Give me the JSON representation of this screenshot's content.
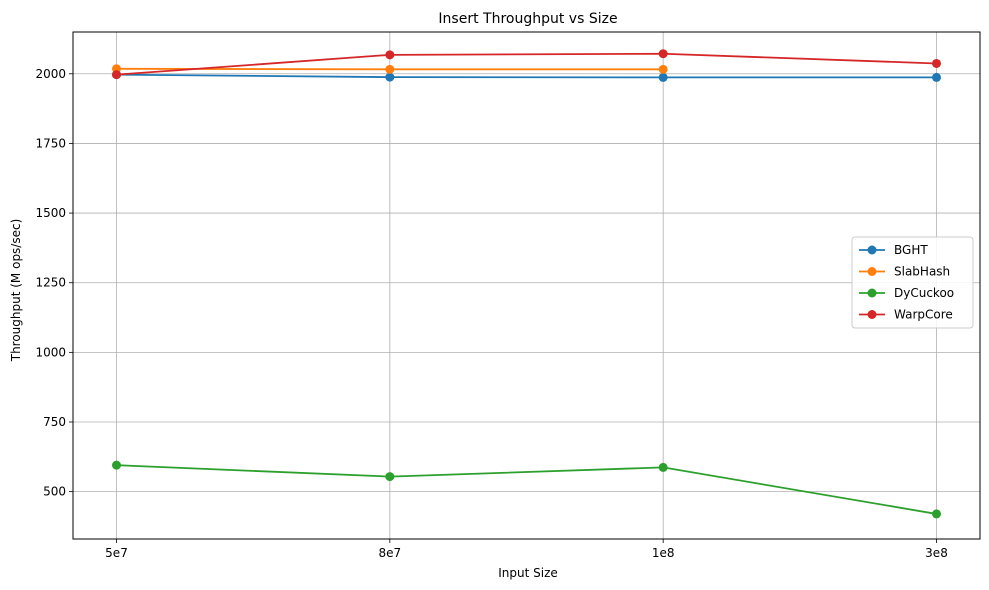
{
  "chart_data": {
    "type": "line",
    "title": "Insert Throughput vs Size",
    "xlabel": "Input Size",
    "ylabel": "Throughput (M ops/sec)",
    "categories": [
      "5e7",
      "8e7",
      "1e8",
      "3e8"
    ],
    "ylim": [
      330,
      2150
    ],
    "yticks": [
      500,
      750,
      1000,
      1250,
      1500,
      1750,
      2000
    ],
    "grid": true,
    "legend_position": "center-right",
    "series": [
      {
        "name": "BGHT",
        "color": "#1f77b4",
        "values": [
          1997,
          1988,
          1987,
          1987
        ]
      },
      {
        "name": "SlabHash",
        "color": "#ff7f0e",
        "values": [
          2018,
          2016,
          2016,
          null
        ]
      },
      {
        "name": "DyCuckoo",
        "color": "#2ca02c",
        "values": [
          595,
          554,
          587,
          420
        ]
      },
      {
        "name": "WarpCore",
        "color": "#d62728",
        "values": [
          1997,
          2068,
          2072,
          2037
        ]
      }
    ]
  }
}
